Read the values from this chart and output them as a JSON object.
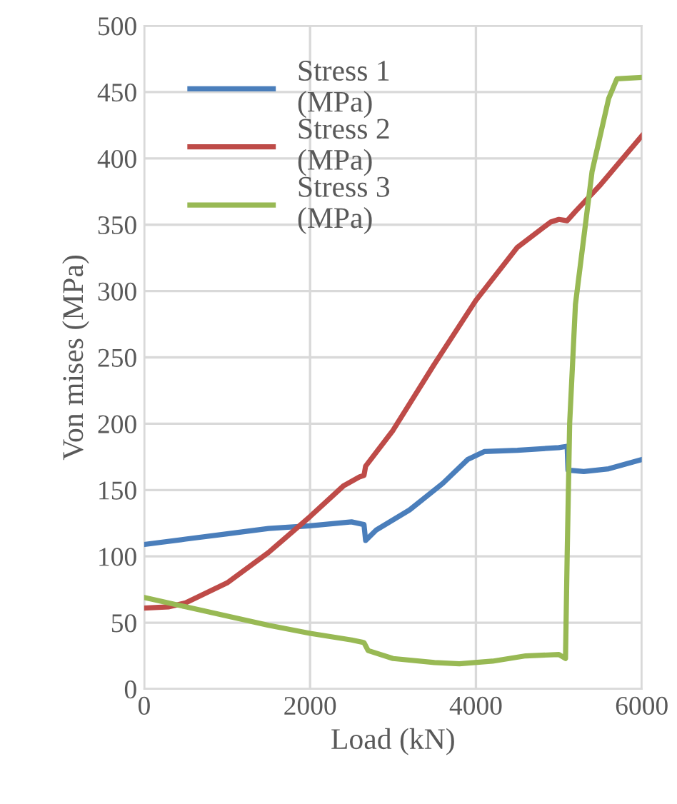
{
  "chart_data": {
    "type": "line",
    "xlabel": "Load (kN)",
    "ylabel": "Von mises (MPa)",
    "xlim": [
      0,
      6000
    ],
    "xticks": [
      0,
      2000,
      4000,
      6000
    ],
    "ylim": [
      0,
      500
    ],
    "yticks": [
      0,
      50,
      100,
      150,
      200,
      250,
      300,
      350,
      400,
      450,
      500
    ],
    "grid": true,
    "legend": "top left",
    "marker": "none",
    "line_style": "solid",
    "series": [
      {
        "name": "Stress 1\n(MPa)",
        "color": "#4a7ebb",
        "x": [
          0,
          500,
          1000,
          1500,
          2000,
          2500,
          2650,
          2670,
          2800,
          3200,
          3600,
          3900,
          4100,
          4500,
          5000,
          5100,
          5110,
          5300,
          5600,
          6000
        ],
        "values": [
          109,
          113,
          117,
          121,
          123,
          126,
          124,
          112,
          120,
          135,
          155,
          173,
          179,
          180,
          182,
          183,
          165,
          164,
          166,
          173
        ]
      },
      {
        "name": "Stress 2\n(MPa)",
        "color": "#be4b48",
        "x": [
          0,
          300,
          500,
          1000,
          1500,
          2000,
          2400,
          2600,
          2650,
          2670,
          3000,
          3500,
          4000,
          4500,
          4900,
          5000,
          5100,
          5200,
          5500,
          6000
        ],
        "values": [
          61,
          62,
          65,
          80,
          103,
          130,
          153,
          160,
          161,
          168,
          195,
          245,
          293,
          333,
          352,
          354,
          353,
          360,
          380,
          417
        ]
      },
      {
        "name": "Stress 3\n(MPa)",
        "color": "#98b954",
        "x": [
          0,
          500,
          1000,
          1500,
          2000,
          2500,
          2650,
          2700,
          3000,
          3500,
          3800,
          4200,
          4600,
          5000,
          5080,
          5100,
          5130,
          5200,
          5300,
          5400,
          5600,
          5700,
          6000
        ],
        "values": [
          69,
          62,
          55,
          48,
          42,
          37,
          35,
          29,
          23,
          20,
          19,
          21,
          25,
          26,
          23,
          100,
          200,
          290,
          340,
          390,
          445,
          460,
          461
        ]
      }
    ]
  }
}
